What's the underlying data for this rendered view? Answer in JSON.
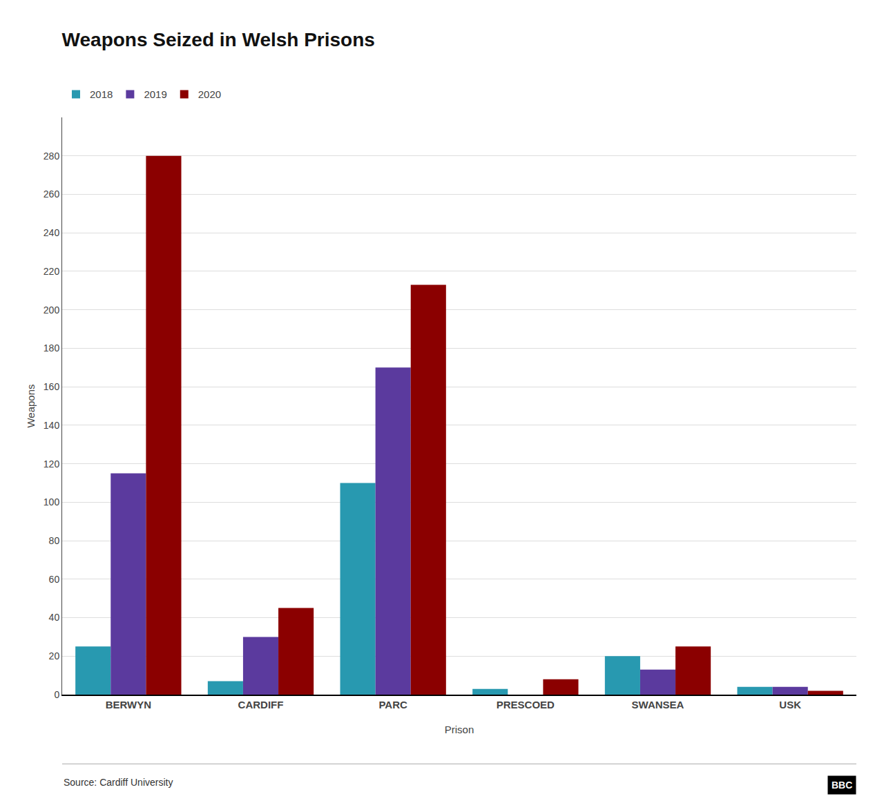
{
  "chart_data": {
    "type": "bar",
    "title": "Weapons Seized in Welsh Prisons",
    "categories": [
      "BERWYN",
      "CARDIFF",
      "PARC",
      "PRESCOED",
      "SWANSEA",
      "USK"
    ],
    "series": [
      {
        "name": "2018",
        "color": "#2899b0",
        "values": [
          25,
          7,
          110,
          3,
          20,
          4
        ]
      },
      {
        "name": "2019",
        "color": "#5b3a9e",
        "values": [
          115,
          30,
          170,
          0,
          13,
          4
        ]
      },
      {
        "name": "2020",
        "color": "#8b0000",
        "values": [
          280,
          45,
          213,
          8,
          25,
          2
        ]
      }
    ],
    "xlabel": "Prison",
    "ylabel": "Weapons",
    "ylim": [
      0,
      300
    ],
    "yticks": [
      0,
      20,
      40,
      60,
      80,
      100,
      120,
      140,
      160,
      180,
      200,
      220,
      240,
      260,
      280
    ],
    "grid": true,
    "legend": "upper left",
    "annotations": [
      "Source: Cardiff University",
      "BBC"
    ]
  }
}
